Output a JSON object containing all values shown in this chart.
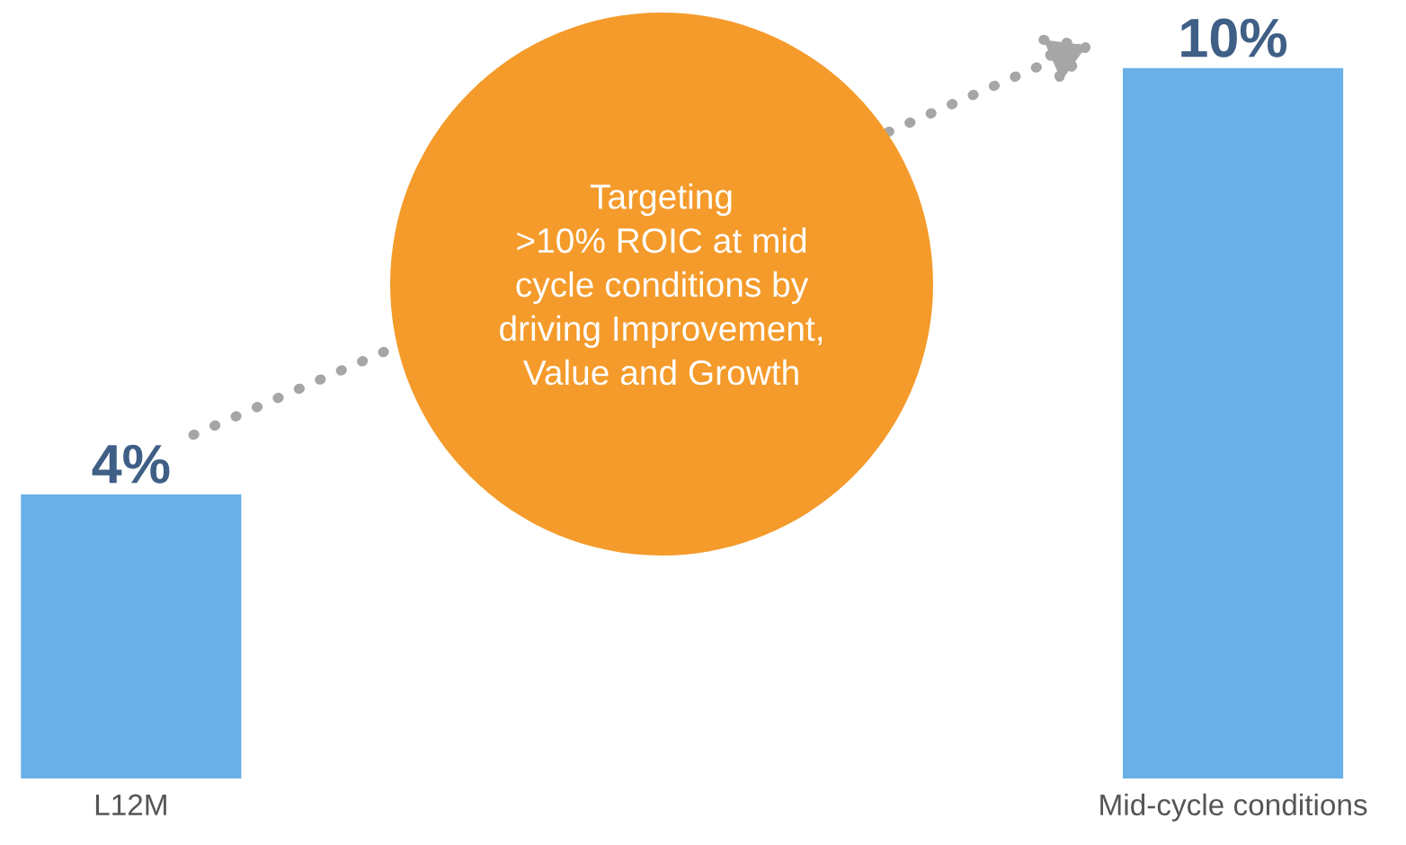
{
  "chart_data": {
    "type": "bar",
    "categories": [
      "L12M",
      "Mid-cycle conditions"
    ],
    "values": [
      4,
      10
    ],
    "color": "#6ab0e6",
    "data_labels": true,
    "value_labels": [
      "4%",
      "10%"
    ],
    "annotations": [
      "Targeting\n>10% ROIC at mid\ncycle conditions by\ndriving Improvement,\nValue and Growth"
    ],
    "grid": false,
    "legend": false
  }
}
